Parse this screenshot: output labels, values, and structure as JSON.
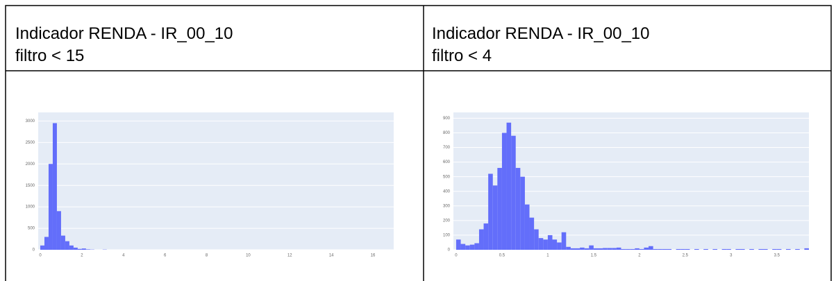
{
  "table": {
    "header": [
      [
        "Indicador RENDA - IR_00_10",
        "filtro < 15"
      ],
      [
        "Indicador RENDA - IR_00_10",
        "filtro < 4"
      ]
    ]
  },
  "chart_data": [
    {
      "type": "histogram",
      "color": "#636efa",
      "grid": true,
      "bins": [
        0,
        0.2,
        0.4,
        0.6,
        0.8,
        1.0,
        1.2,
        1.4,
        1.6,
        1.8,
        2.0,
        2.2,
        2.4,
        2.6,
        2.8,
        3.0,
        3.2
      ],
      "values": [
        100,
        300,
        2000,
        2950,
        900,
        330,
        200,
        100,
        50,
        20,
        30,
        10,
        5,
        0,
        0,
        5
      ],
      "xlim": [
        -0.1,
        17
      ],
      "xticks": [
        0,
        2,
        4,
        6,
        8,
        10,
        12,
        14,
        16
      ],
      "ylim": [
        0,
        3200
      ],
      "yticks": [
        0,
        500,
        1000,
        1500,
        2000,
        2500,
        3000
      ]
    },
    {
      "type": "histogram",
      "color": "#636efa",
      "grid": true,
      "bins": [
        0,
        0.05,
        0.1,
        0.15,
        0.2,
        0.25,
        0.3,
        0.35,
        0.4,
        0.45,
        0.5,
        0.55,
        0.6,
        0.65,
        0.7,
        0.75,
        0.8,
        0.85,
        0.9,
        0.95,
        1.0,
        1.05,
        1.1,
        1.15,
        1.2,
        1.25,
        1.3,
        1.35,
        1.4,
        1.45,
        1.5,
        1.55,
        1.6,
        1.65,
        1.7,
        1.75,
        1.8,
        1.85,
        1.9,
        1.95,
        2.0,
        2.05,
        2.1,
        2.15,
        2.2,
        2.25,
        2.3,
        2.35,
        2.4,
        2.45,
        2.5,
        2.55,
        2.6,
        2.65,
        2.7,
        2.75,
        2.8,
        2.85,
        2.9,
        2.95,
        3.0,
        3.05,
        3.1,
        3.15,
        3.2,
        3.25,
        3.3,
        3.35,
        3.4,
        3.45,
        3.5,
        3.55,
        3.6,
        3.65,
        3.7,
        3.75,
        3.8,
        3.85
      ],
      "values": [
        70,
        40,
        30,
        35,
        45,
        140,
        180,
        520,
        440,
        560,
        800,
        870,
        780,
        560,
        500,
        310,
        220,
        140,
        80,
        70,
        100,
        70,
        50,
        120,
        20,
        10,
        10,
        15,
        10,
        30,
        10,
        10,
        12,
        12,
        12,
        15,
        5,
        5,
        5,
        10,
        5,
        15,
        25,
        5,
        5,
        5,
        5,
        0,
        5,
        5,
        5,
        0,
        5,
        0,
        5,
        0,
        5,
        0,
        5,
        5,
        0,
        5,
        5,
        0,
        5,
        0,
        5,
        5,
        0,
        5,
        5,
        0,
        5,
        0,
        5,
        0,
        10
      ],
      "xlim": [
        -0.03,
        3.85
      ],
      "xticks": [
        0,
        0.5,
        1,
        1.5,
        2,
        2.5,
        3,
        3.5
      ],
      "ylim": [
        0,
        940
      ],
      "yticks": [
        0,
        100,
        200,
        300,
        400,
        500,
        600,
        700,
        800,
        900
      ]
    }
  ]
}
